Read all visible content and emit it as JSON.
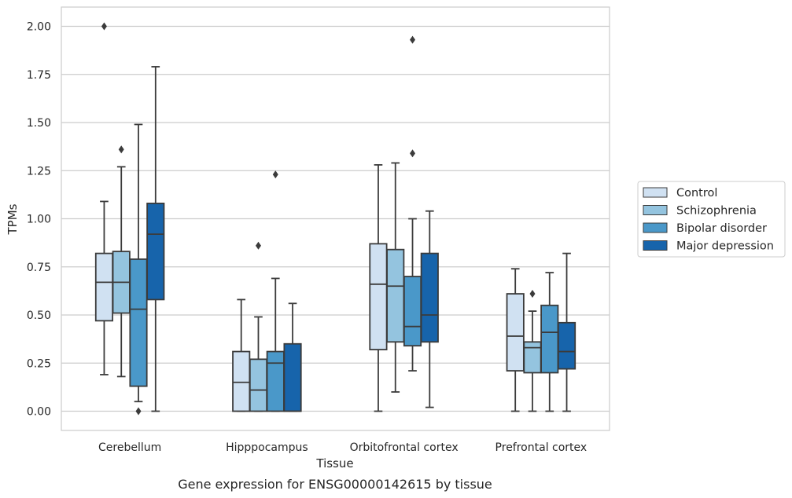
{
  "chart_data": {
    "type": "box",
    "xlabel": "Tissue",
    "ylabel": "TPMs",
    "caption": "Gene expression for ENSG00000142615 by tissue",
    "ylim": [
      -0.1,
      2.1
    ],
    "yticks": [
      0,
      0.25,
      0.5,
      0.75,
      1.0,
      1.25,
      1.5,
      1.75,
      2.0
    ],
    "ytick_labels": [
      "0.00",
      "0.25",
      "0.50",
      "0.75",
      "1.00",
      "1.25",
      "1.50",
      "1.75",
      "2.00"
    ],
    "grid": "horizontal",
    "legend_position": "right",
    "categories": [
      "Cerebellum",
      "Hipppocampus",
      "Orbitofrontal cortex",
      "Prefrontal cortex"
    ],
    "series": [
      {
        "name": "Control",
        "color": "#d0e1f2",
        "boxes": [
          {
            "whisker_low": 0.19,
            "q1": 0.47,
            "median": 0.67,
            "q3": 0.82,
            "whisker_high": 1.09,
            "outliers": [
              2.0
            ]
          },
          {
            "whisker_low": 0.0,
            "q1": 0.0,
            "median": 0.15,
            "q3": 0.31,
            "whisker_high": 0.58,
            "outliers": []
          },
          {
            "whisker_low": 0.0,
            "q1": 0.32,
            "median": 0.66,
            "q3": 0.87,
            "whisker_high": 1.28,
            "outliers": []
          },
          {
            "whisker_low": 0.0,
            "q1": 0.21,
            "median": 0.39,
            "q3": 0.61,
            "whisker_high": 0.74,
            "outliers": []
          }
        ]
      },
      {
        "name": "Schizophrenia",
        "color": "#94c4df",
        "boxes": [
          {
            "whisker_low": 0.18,
            "q1": 0.51,
            "median": 0.67,
            "q3": 0.83,
            "whisker_high": 1.27,
            "outliers": [
              1.36
            ]
          },
          {
            "whisker_low": 0.0,
            "q1": 0.0,
            "median": 0.11,
            "q3": 0.27,
            "whisker_high": 0.49,
            "outliers": [
              0.86
            ]
          },
          {
            "whisker_low": 0.1,
            "q1": 0.36,
            "median": 0.65,
            "q3": 0.84,
            "whisker_high": 1.29,
            "outliers": []
          },
          {
            "whisker_low": 0.0,
            "q1": 0.2,
            "median": 0.33,
            "q3": 0.36,
            "whisker_high": 0.52,
            "outliers": [
              0.61
            ]
          }
        ]
      },
      {
        "name": "Bipolar disorder",
        "color": "#4a98c9",
        "boxes": [
          {
            "whisker_low": 0.05,
            "q1": 0.13,
            "median": 0.53,
            "q3": 0.79,
            "whisker_high": 1.49,
            "outliers": [
              0.0
            ]
          },
          {
            "whisker_low": 0.0,
            "q1": 0.0,
            "median": 0.25,
            "q3": 0.31,
            "whisker_high": 0.69,
            "outliers": [
              1.23
            ]
          },
          {
            "whisker_low": 0.21,
            "q1": 0.34,
            "median": 0.44,
            "q3": 0.7,
            "whisker_high": 1.0,
            "outliers": [
              1.34,
              1.93
            ]
          },
          {
            "whisker_low": 0.0,
            "q1": 0.2,
            "median": 0.41,
            "q3": 0.55,
            "whisker_high": 0.72,
            "outliers": []
          }
        ]
      },
      {
        "name": "Major depression",
        "color": "#1764ab",
        "boxes": [
          {
            "whisker_low": 0.0,
            "q1": 0.58,
            "median": 0.92,
            "q3": 1.08,
            "whisker_high": 1.79,
            "outliers": []
          },
          {
            "whisker_low": 0.0,
            "q1": 0.0,
            "median": 0.0,
            "q3": 0.35,
            "whisker_high": 0.56,
            "outliers": []
          },
          {
            "whisker_low": 0.02,
            "q1": 0.36,
            "median": 0.5,
            "q3": 0.82,
            "whisker_high": 1.04,
            "outliers": []
          },
          {
            "whisker_low": 0.0,
            "q1": 0.22,
            "median": 0.31,
            "q3": 0.46,
            "whisker_high": 0.82,
            "outliers": []
          }
        ]
      }
    ]
  }
}
